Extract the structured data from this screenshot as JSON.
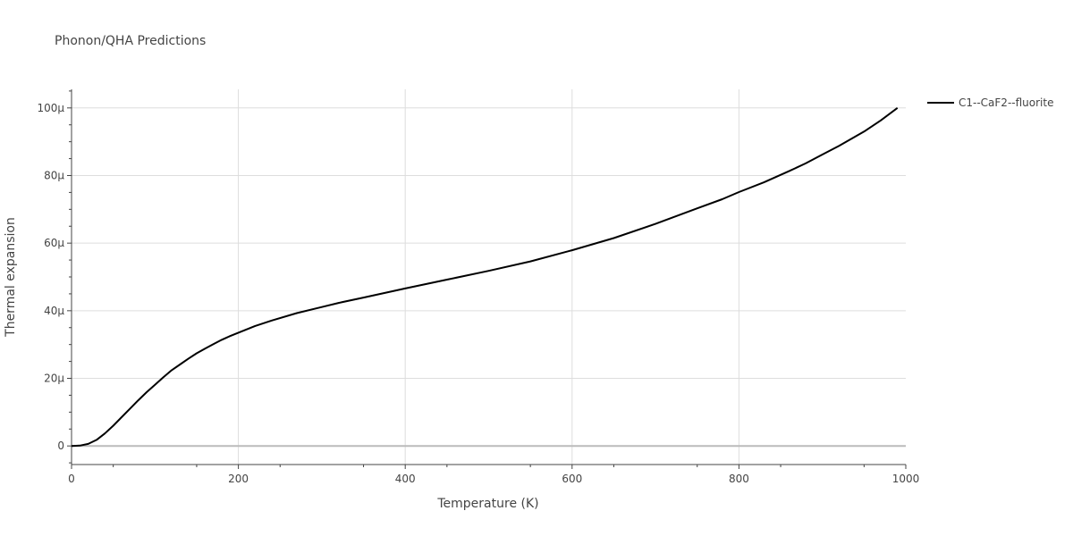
{
  "chart_data": {
    "type": "line",
    "title": "Phonon/QHA Predictions",
    "xlabel": "Temperature (K)",
    "ylabel": "Thermal expansion",
    "xlim": [
      0,
      1000
    ],
    "ylim": [
      -5.5,
      105.5
    ],
    "x_ticks": [
      0,
      200,
      400,
      600,
      800,
      1000
    ],
    "x_tick_labels": [
      "0",
      "200",
      "400",
      "600",
      "800",
      "1000"
    ],
    "y_ticks": [
      0,
      20,
      40,
      60,
      80,
      100
    ],
    "y_tick_labels": [
      "0",
      "20µ",
      "40µ",
      "60µ",
      "80µ",
      "100µ"
    ],
    "y_unit_note": "values in units of 1e-6 (µ)",
    "grid": true,
    "legend_position": "top-right",
    "series": [
      {
        "name": "C1--CaF2--fluorite",
        "color": "#000000",
        "x": [
          0,
          10,
          20,
          30,
          40,
          50,
          60,
          70,
          80,
          90,
          100,
          110,
          120,
          130,
          140,
          150,
          160,
          170,
          180,
          190,
          200,
          220,
          240,
          270,
          300,
          320,
          350,
          400,
          450,
          500,
          550,
          600,
          650,
          700,
          750,
          780,
          800,
          830,
          860,
          880,
          900,
          920,
          950,
          970,
          990
        ],
        "y": [
          0,
          0.1,
          0.6,
          1.8,
          3.7,
          6.0,
          8.5,
          11.0,
          13.5,
          15.9,
          18.1,
          20.3,
          22.4,
          24.1,
          25.8,
          27.4,
          28.8,
          30.1,
          31.4,
          32.5,
          33.5,
          35.5,
          37.1,
          39.3,
          41.1,
          42.3,
          43.9,
          46.6,
          49.2,
          51.8,
          54.6,
          57.9,
          61.5,
          65.7,
          70.3,
          73.0,
          75.1,
          78.0,
          81.3,
          83.6,
          86.2,
          88.8,
          93.0,
          96.3,
          100.0
        ]
      }
    ]
  }
}
